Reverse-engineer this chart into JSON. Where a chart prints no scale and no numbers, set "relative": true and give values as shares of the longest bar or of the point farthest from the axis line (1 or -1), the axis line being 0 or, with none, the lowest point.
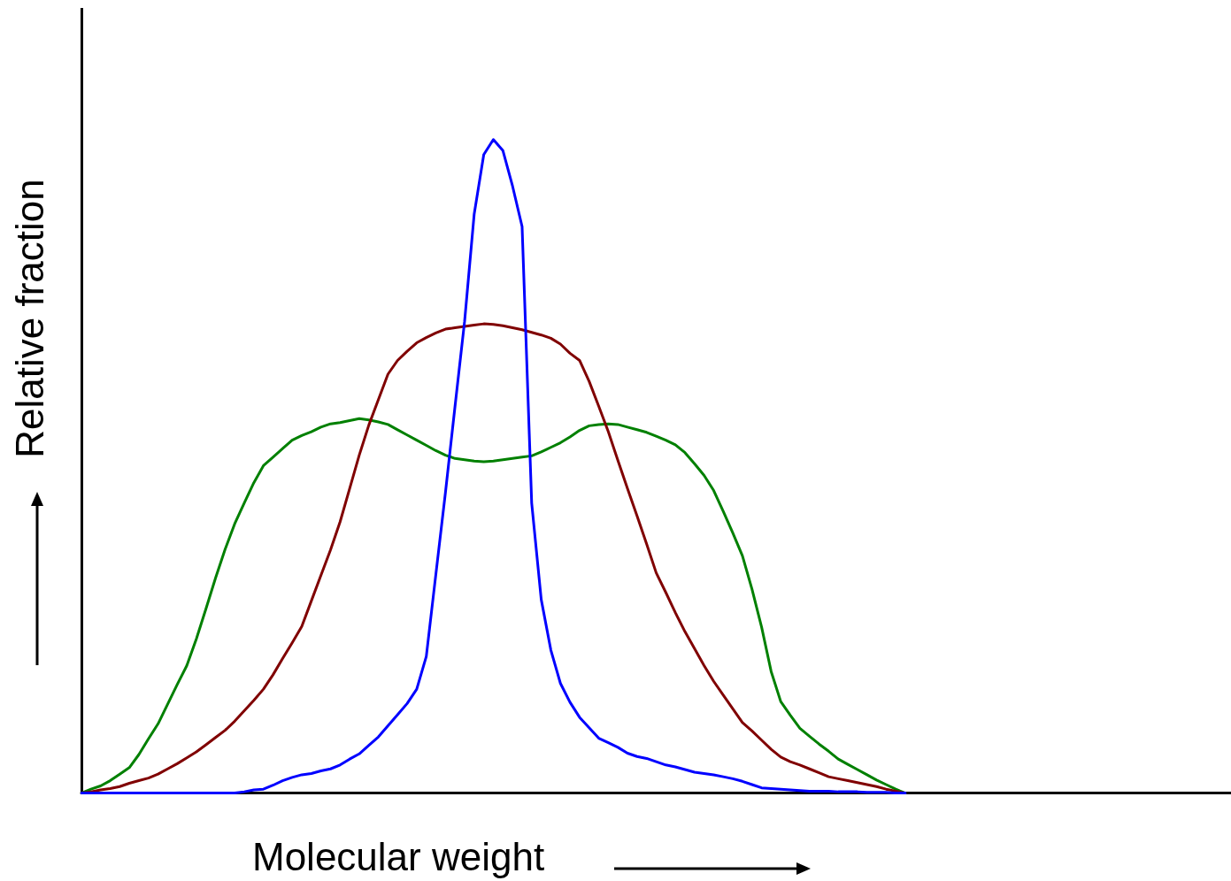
{
  "chart_data": {
    "type": "line",
    "xlabel": "Molecular weight",
    "ylabel": "Relative fraction",
    "relative": true,
    "marker": "none",
    "line_style": "solid",
    "categories": [
      null,
      null,
      null,
      null,
      null,
      null,
      null,
      null,
      null,
      null,
      null,
      null,
      null,
      null,
      null,
      null,
      null,
      null,
      null,
      null,
      null,
      null,
      null,
      null,
      null,
      null,
      null,
      null,
      null,
      null,
      null,
      null,
      null,
      null,
      null,
      null,
      null,
      null,
      null,
      null,
      null,
      null,
      null,
      null,
      null,
      null,
      null,
      null,
      null,
      null,
      null,
      null,
      null,
      null,
      null,
      null,
      null,
      null,
      null,
      null,
      null,
      null,
      null,
      null,
      null,
      null,
      null,
      null,
      null,
      null,
      null,
      null,
      null,
      null,
      null,
      null,
      null,
      null,
      null,
      null,
      null,
      null,
      null,
      null,
      null,
      null,
      null,
      null,
      null,
      null,
      null,
      null,
      null,
      null,
      null,
      null,
      null,
      null,
      null,
      null,
      null,
      null,
      null,
      null,
      null,
      null,
      null,
      null,
      null,
      null,
      null,
      null,
      null,
      null,
      null,
      null,
      null,
      null,
      null,
      null,
      null
    ],
    "series": [
      {
        "color": "#0000ff",
        "values": [
          0,
          0,
          0,
          0,
          0,
          0,
          0,
          0,
          0,
          0,
          0,
          0,
          0,
          0,
          0,
          0,
          0,
          0.002,
          0.005,
          0.006,
          0.012,
          0.019,
          0.024,
          0.028,
          0.03,
          0.034,
          0.037,
          0.043,
          0.052,
          0.06,
          0.073,
          0.086,
          0.103,
          0.12,
          0.137,
          0.159,
          0.209,
          0.335,
          0.46,
          0.592,
          0.722,
          0.886,
          0.977,
          1,
          0.983,
          0.929,
          0.867,
          0.444,
          0.296,
          0.219,
          0.168,
          0.139,
          0.116,
          0.1,
          0.084,
          0.077,
          0.07,
          0.061,
          0.056,
          0.053,
          0.048,
          0.043,
          0.04,
          0.036,
          0.032,
          0.03,
          0.028,
          0.025,
          0.022,
          0.018,
          0.013,
          0.008,
          0.007,
          0.006,
          0.005,
          0.004,
          0.003,
          0.003,
          0.003,
          0.002,
          0.002,
          0.002,
          0.001,
          0.001,
          0.001,
          0,
          0,
          null,
          null,
          null,
          null,
          null,
          null,
          null,
          null,
          null,
          null,
          null,
          null,
          null,
          null,
          null,
          null,
          null,
          null,
          null,
          null,
          null,
          null,
          null,
          null,
          null,
          null,
          null,
          null,
          null,
          null,
          null,
          null,
          null,
          null
        ]
      },
      {
        "color": "#800000",
        "values": [
          0,
          0.002,
          0.005,
          0.007,
          0.01,
          0.015,
          0.019,
          0.023,
          0.029,
          0.037,
          0.045,
          0.054,
          0.063,
          0.074,
          0.085,
          0.096,
          0.11,
          0.126,
          0.142,
          0.159,
          0.181,
          0.206,
          0.23,
          0.255,
          0.294,
          0.333,
          0.372,
          0.415,
          0.466,
          0.517,
          0.563,
          0.602,
          0.641,
          0.662,
          0.676,
          0.689,
          0.697,
          0.704,
          0.71,
          0.712,
          0.714,
          0.716,
          0.718,
          0.717,
          0.715,
          0.712,
          0.709,
          0.705,
          0.701,
          0.696,
          0.687,
          0.673,
          0.662,
          0.63,
          0.592,
          0.553,
          0.509,
          0.466,
          0.424,
          0.381,
          0.337,
          0.307,
          0.276,
          0.247,
          0.221,
          0.195,
          0.171,
          0.15,
          0.129,
          0.108,
          0.095,
          0.081,
          0.067,
          0.055,
          0.048,
          0.043,
          0.037,
          0.031,
          0.025,
          0.022,
          0.019,
          0.016,
          0.013,
          0.01,
          0.006,
          0.003,
          0,
          null,
          null,
          null,
          null,
          null,
          null,
          null,
          null,
          null,
          null,
          null,
          null,
          null,
          null,
          null,
          null,
          null,
          null,
          null,
          null,
          null,
          null,
          null,
          null,
          null,
          null,
          null,
          null,
          null,
          null,
          null,
          null,
          null,
          null
        ]
      },
      {
        "color": "#008000",
        "values": [
          0,
          0.006,
          0.011,
          0.019,
          0.029,
          0.039,
          0.059,
          0.083,
          0.106,
          0.136,
          0.166,
          0.195,
          0.236,
          0.282,
          0.329,
          0.373,
          0.412,
          0.444,
          0.475,
          0.501,
          0.514,
          0.527,
          0.54,
          0.547,
          0.553,
          0.56,
          0.565,
          0.567,
          0.57,
          0.573,
          0.571,
          0.568,
          0.564,
          0.556,
          0.548,
          0.54,
          0.532,
          0.524,
          0.517,
          0.512,
          0.51,
          0.508,
          0.507,
          0.508,
          0.51,
          0.512,
          0.514,
          0.516,
          0.522,
          0.529,
          0.536,
          0.545,
          0.555,
          0.562,
          0.564,
          0.565,
          0.564,
          0.56,
          0.556,
          0.552,
          0.546,
          0.54,
          0.533,
          0.521,
          0.504,
          0.486,
          0.463,
          0.431,
          0.398,
          0.363,
          0.312,
          0.254,
          0.186,
          0.14,
          0.119,
          0.099,
          0.087,
          0.075,
          0.064,
          0.052,
          0.044,
          0.036,
          0.028,
          0.02,
          0.013,
          0.006,
          0,
          null,
          null,
          null,
          null,
          null,
          null,
          null,
          null,
          null,
          null,
          null,
          null,
          null,
          null,
          null,
          null,
          null,
          null,
          null,
          null,
          null,
          null,
          null,
          null,
          null,
          null,
          null,
          null,
          null,
          null,
          null,
          null,
          null,
          null
        ]
      }
    ]
  }
}
